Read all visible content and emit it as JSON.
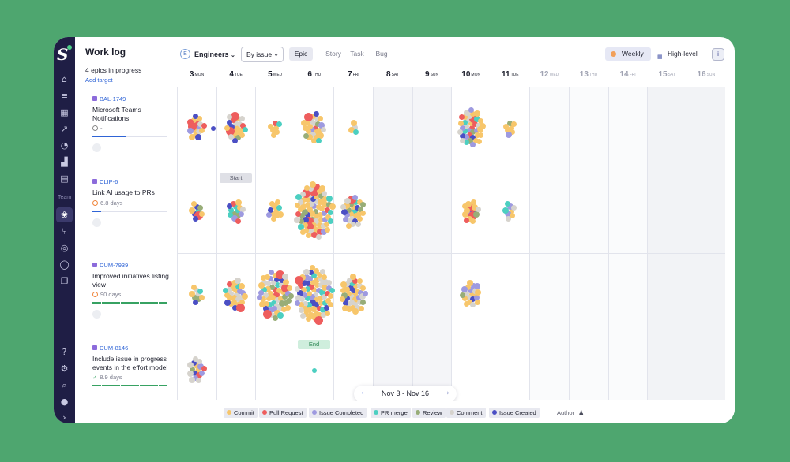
{
  "sidebar": {
    "team_label": "Team",
    "expand_icon": "›"
  },
  "header": {
    "title": "Work log",
    "summary": "4 epics in progress",
    "add_target": "Add target"
  },
  "toolbar": {
    "team_badge": "E",
    "team_select": "Engineers",
    "group_select": "By issue",
    "segments": [
      "Epic",
      "Story",
      "Task",
      "Bug"
    ],
    "active_segment": "Epic",
    "weekly_label": "Weekly",
    "highlevel_label": "High-level",
    "info_icon": "i"
  },
  "days": [
    {
      "num": "3",
      "wd": "MON",
      "future": false,
      "weekend": false
    },
    {
      "num": "4",
      "wd": "TUE",
      "future": false,
      "weekend": false
    },
    {
      "num": "5",
      "wd": "WED",
      "future": false,
      "weekend": false
    },
    {
      "num": "6",
      "wd": "THU",
      "future": false,
      "weekend": false
    },
    {
      "num": "7",
      "wd": "FRI",
      "future": false,
      "weekend": false
    },
    {
      "num": "8",
      "wd": "SAT",
      "future": false,
      "weekend": true
    },
    {
      "num": "9",
      "wd": "SUN",
      "future": false,
      "weekend": true
    },
    {
      "num": "10",
      "wd": "MON",
      "future": false,
      "weekend": false
    },
    {
      "num": "11",
      "wd": "TUE",
      "future": false,
      "weekend": false
    },
    {
      "num": "12",
      "wd": "WED",
      "future": true,
      "weekend": false
    },
    {
      "num": "13",
      "wd": "THU",
      "future": true,
      "weekend": false
    },
    {
      "num": "14",
      "wd": "FRI",
      "future": true,
      "weekend": false
    },
    {
      "num": "15",
      "wd": "SAT",
      "future": true,
      "weekend": true
    },
    {
      "num": "16",
      "wd": "SUN",
      "future": true,
      "weekend": true
    }
  ],
  "epics": [
    {
      "key": "BAL-1749",
      "title": "Microsoft Teams Notifications",
      "meta": "-",
      "meta_icon": "ring",
      "progress": 0.45,
      "bar_color": "#2f64d6"
    },
    {
      "key": "CLIP-6",
      "title": "Link AI usage to PRs",
      "meta": "6.8 days",
      "meta_icon": "ring-orange",
      "progress": 0.12,
      "bar_color": "#2f64d6"
    },
    {
      "key": "DUM-7939",
      "title": "Improved initiatives listing view",
      "meta": "90 days",
      "meta_icon": "ring-orange",
      "progress": 1.0,
      "bar_color": "#37a262"
    },
    {
      "key": "DUM-8146",
      "title": "Include issue in progress events in the effort model",
      "meta": "8.9 days",
      "meta_icon": "check",
      "progress": 1.0,
      "bar_color": "#37a262"
    }
  ],
  "markers": {
    "start_label": "Start",
    "end_label": "End"
  },
  "pager": {
    "range": "Nov 3 - Nov 16",
    "prev": "‹",
    "next": "›"
  },
  "legend": [
    {
      "label": "Commit",
      "color": "#f7c66b"
    },
    {
      "label": "Pull Request",
      "color": "#ee5d5d"
    },
    {
      "label": "Issue Completed",
      "color": "#9e9ae0"
    },
    {
      "label": "PR merge",
      "color": "#4ccfc1"
    },
    {
      "label": "Review",
      "color": "#98ad78"
    },
    {
      "label": "Comment",
      "color": "#d6d3cd"
    },
    {
      "label": "Issue Created",
      "color": "#4b4fc4"
    }
  ],
  "author_label": "Author",
  "chart_data": {
    "type": "scatter",
    "title": "",
    "xlabel": "",
    "ylabel": "",
    "categories": [
      "3",
      "4",
      "5",
      "6",
      "7",
      "8",
      "9",
      "10",
      "11",
      "12",
      "13",
      "14",
      "15",
      "16"
    ],
    "series": [
      {
        "name": "BAL-1749",
        "activity": [
          16,
          22,
          7,
          26,
          4,
          0,
          0,
          38,
          7,
          0,
          0,
          0,
          0,
          0
        ]
      },
      {
        "name": "CLIP-6",
        "activity": [
          9,
          14,
          11,
          72,
          28,
          0,
          0,
          15,
          8,
          0,
          0,
          0,
          0,
          0
        ]
      },
      {
        "name": "DUM-7939",
        "activity": [
          9,
          26,
          56,
          72,
          38,
          0,
          0,
          19,
          0,
          0,
          0,
          0,
          0,
          0
        ]
      },
      {
        "name": "DUM-8146",
        "activity": [
          16,
          0,
          0,
          1,
          0,
          0,
          0,
          0,
          0,
          0,
          0,
          0,
          0,
          0
        ]
      }
    ]
  }
}
